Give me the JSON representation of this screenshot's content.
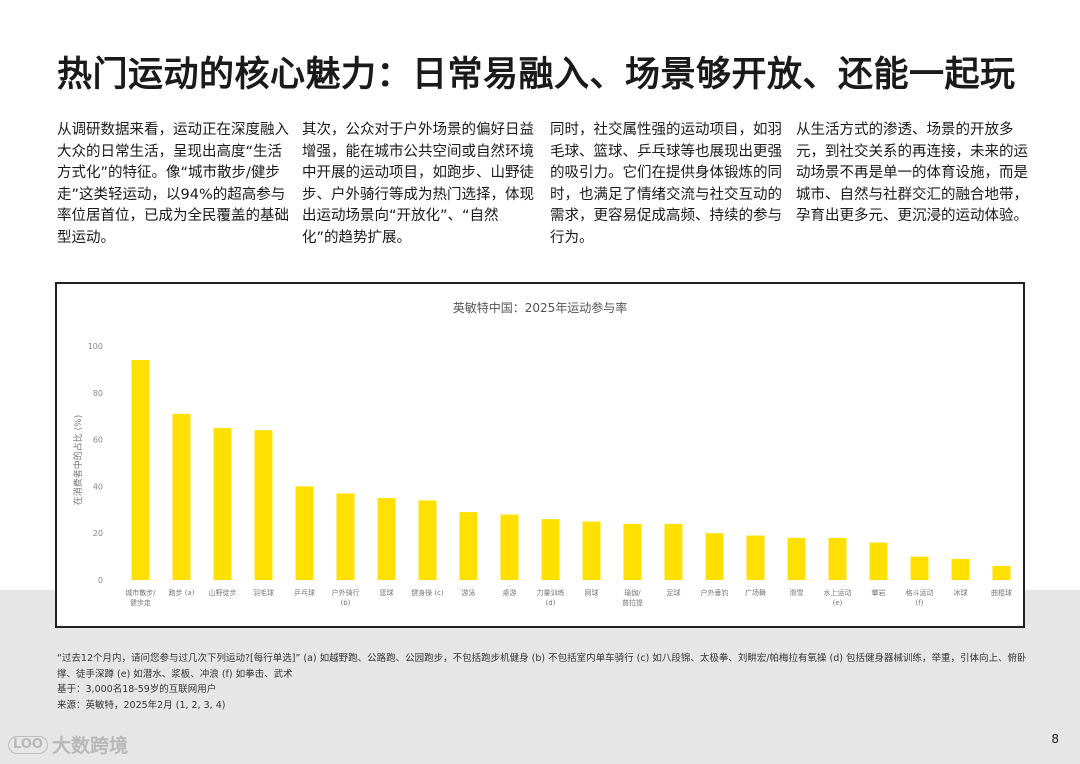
{
  "page": {
    "title": "热门运动的核心魅力：日常易融入、场景够开放、还能一起玩",
    "columns": [
      "从调研数据来看，运动正在深度融入大众的日常生活，呈现出高度“生活方式化”的特征。像“城市散步/健步走”这类轻运动，以94%的超高参与率位居首位，已成为全民覆盖的基础型运动。",
      "其次，公众对于户外场景的偏好日益增强，能在城市公共空间或自然环境中开展的运动项目，如跑步、山野徒步、户外骑行等成为热门选择，体现出运动场景向“开放化”、“自然化”的趋势扩展。",
      "同时，社交属性强的运动项目，如羽毛球、篮球、乒乓球等也展现出更强的吸引力。它们在提供身体锻炼的同时，也满足了情绪交流与社交互动的需求，更容易促成高频、持续的参与行为。",
      "从生活方式的渗透、场景的开放多元，到社交关系的再连接，未来的运动场景不再是单一的体育设施，而是城市、自然与社群交汇的融合地带，孕育出更多元、更沉浸的运动体验。"
    ],
    "footnotes": [
      "“过去12个月内，请问您参与过几次下列运动?[每行单选]” (a) 如越野跑、公路跑、公园跑步，不包括跑步机健身 (b) 不包括室内单车骑行 (c) 如八段锦、太极拳、刘畊宏/帕梅拉有氧操 (d) 包括健身器械训练，举重，引体向上、俯卧撑、徒手深蹲 (e) 如潜水、浆板、冲浪 (f) 如拳击、武术",
      "基于：3,000名18-59岁的互联网用户",
      "来源：英敏特，2025年2月 (1, 2, 3, 4)"
    ],
    "logo_text": "大数跨境",
    "logo_mark": "LOO",
    "page_number": "8"
  },
  "colors": {
    "bar": "#FFE000",
    "text": "#1a1a1a",
    "band": "#e6e6e6"
  },
  "chart_data": {
    "type": "bar",
    "title": "英敏特中国：2025年运动参与率",
    "ylabel": "在消费者中的占比 (%)",
    "xlabel": "",
    "ylim": [
      0,
      100
    ],
    "yticks": [
      0,
      20,
      40,
      60,
      80,
      100
    ],
    "categories": [
      [
        "城市散步/",
        "健步走"
      ],
      [
        "跑步 (a)"
      ],
      [
        "山野徒步"
      ],
      [
        "羽毛球"
      ],
      [
        "乒乓球"
      ],
      [
        "户外骑行",
        "(b)"
      ],
      [
        "篮球"
      ],
      [
        "健身操 (c)"
      ],
      [
        "游泳"
      ],
      [
        "桌游"
      ],
      [
        "力量训练",
        "(d)"
      ],
      [
        "网球"
      ],
      [
        "瑜伽/",
        "普拉提"
      ],
      [
        "足球"
      ],
      [
        "户外垂钓"
      ],
      [
        "广场舞"
      ],
      [
        "滑雪"
      ],
      [
        "水上运动",
        "(e)"
      ],
      [
        "攀岩"
      ],
      [
        "格斗运动",
        "(f)"
      ],
      [
        "冰球"
      ],
      [
        "曲棍球"
      ]
    ],
    "values": [
      94,
      71,
      65,
      64,
      40,
      37,
      35,
      34,
      29,
      28,
      26,
      25,
      24,
      24,
      20,
      19,
      18,
      18,
      16,
      10,
      9,
      6
    ]
  }
}
